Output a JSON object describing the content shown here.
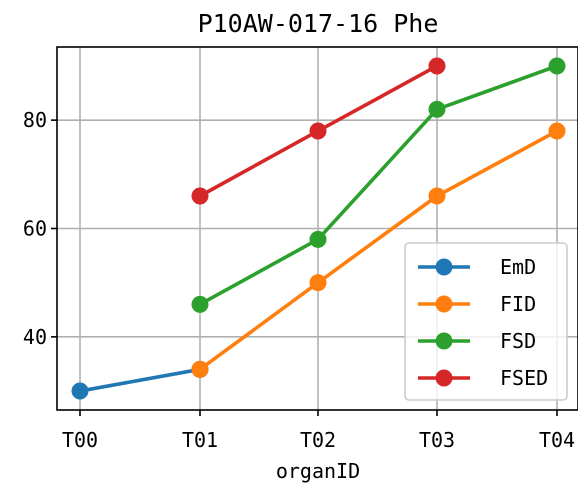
{
  "chart_data": {
    "type": "line",
    "title": "P10AW-017-16 Phe",
    "xlabel": "organID",
    "ylabel": "",
    "categories": [
      "T00",
      "T01",
      "T02",
      "T03",
      "T04"
    ],
    "yticks": [
      40,
      60,
      80
    ],
    "ylim": [
      26.5,
      93.5
    ],
    "grid": true,
    "legend_position": "lower-right",
    "series": [
      {
        "name": "EmD",
        "color": "#1f77b4",
        "values": [
          30,
          34,
          null,
          null,
          null
        ]
      },
      {
        "name": "FID",
        "color": "#ff7f0e",
        "values": [
          null,
          34,
          50,
          66,
          78
        ]
      },
      {
        "name": "FSD",
        "color": "#2ca02c",
        "values": [
          null,
          46,
          58,
          82,
          90
        ]
      },
      {
        "name": "FSED",
        "color": "#d62728",
        "values": [
          null,
          66,
          78,
          90,
          null
        ]
      }
    ]
  }
}
